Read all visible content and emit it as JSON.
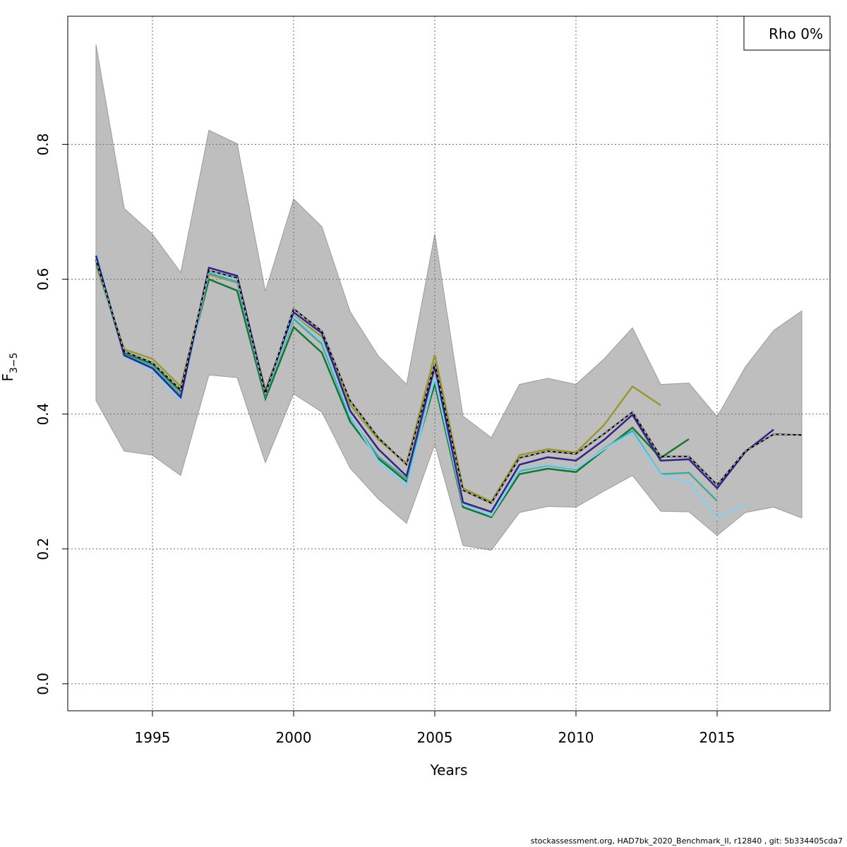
{
  "chart_data": {
    "type": "line",
    "xlabel": "Years",
    "ylabel": "F",
    "ylabel_subscript": "3−5",
    "xlim": [
      1992,
      2019
    ],
    "ylim": [
      -0.04,
      0.99
    ],
    "x_ticks": [
      1995,
      2000,
      2005,
      2010,
      2015
    ],
    "y_ticks": [
      0.0,
      0.2,
      0.4,
      0.6,
      0.8
    ],
    "grid": true,
    "legend": {
      "text": "Rho 0%",
      "position": "top-right"
    },
    "confidence_band": {
      "color": "#bebebe",
      "x": [
        1993,
        1994,
        1995,
        1996,
        1997,
        1998,
        1999,
        2000,
        2001,
        2002,
        2003,
        2004,
        2005,
        2006,
        2007,
        2008,
        2009,
        2010,
        2011,
        2012,
        2013,
        2014,
        2015,
        2016,
        2017,
        2018
      ],
      "upper": [
        0.948,
        0.705,
        0.667,
        0.61,
        0.821,
        0.801,
        0.582,
        0.719,
        0.678,
        0.552,
        0.486,
        0.444,
        0.667,
        0.397,
        0.365,
        0.444,
        0.453,
        0.444,
        0.482,
        0.528,
        0.444,
        0.446,
        0.396,
        0.47,
        0.524,
        0.553
      ],
      "lower": [
        0.42,
        0.345,
        0.339,
        0.309,
        0.458,
        0.454,
        0.328,
        0.43,
        0.403,
        0.32,
        0.274,
        0.238,
        0.355,
        0.205,
        0.198,
        0.254,
        0.263,
        0.262,
        0.286,
        0.309,
        0.256,
        0.255,
        0.22,
        0.254,
        0.262,
        0.246
      ]
    },
    "series": [
      {
        "color": "#000000",
        "dashed": true,
        "x": [
          1993,
          1994,
          1995,
          1996,
          1997,
          1998,
          1999,
          2000,
          2001,
          2002,
          2003,
          2004,
          2005,
          2006,
          2007,
          2008,
          2009,
          2010,
          2011,
          2012,
          2013,
          2014,
          2015,
          2016,
          2017,
          2018
        ],
        "y": [
          0.628,
          0.493,
          0.476,
          0.436,
          0.613,
          0.602,
          0.43,
          0.556,
          0.523,
          0.42,
          0.365,
          0.325,
          0.475,
          0.287,
          0.268,
          0.335,
          0.345,
          0.341,
          0.371,
          0.403,
          0.337,
          0.337,
          0.295,
          0.345,
          0.37,
          0.369
        ]
      },
      {
        "color": "#999933",
        "x": [
          1993,
          1994,
          1995,
          1996,
          1997,
          1998,
          1999,
          2000,
          2001,
          2002,
          2003,
          2004,
          2005,
          2006,
          2007,
          2008,
          2009,
          2010,
          2011,
          2012,
          2013
        ],
        "y": [
          0.621,
          0.496,
          0.482,
          0.441,
          0.607,
          0.595,
          0.436,
          0.546,
          0.515,
          0.414,
          0.362,
          0.327,
          0.488,
          0.29,
          0.27,
          0.339,
          0.348,
          0.343,
          0.384,
          0.441,
          0.413
        ]
      },
      {
        "color": "#117733",
        "x": [
          1993,
          1994,
          1995,
          1996,
          1997,
          1998,
          1999,
          2000,
          2001,
          2002,
          2003,
          2004,
          2005,
          2006,
          2007,
          2008,
          2009,
          2010,
          2011,
          2012,
          2013,
          2014
        ],
        "y": [
          0.63,
          0.49,
          0.474,
          0.434,
          0.6,
          0.583,
          0.423,
          0.529,
          0.491,
          0.389,
          0.334,
          0.3,
          0.445,
          0.262,
          0.247,
          0.311,
          0.319,
          0.314,
          0.347,
          0.38,
          0.335,
          0.363
        ]
      },
      {
        "color": "#44AA99",
        "x": [
          1993,
          1994,
          1995,
          1996,
          1997,
          1998,
          1999,
          2000,
          2001,
          2002,
          2003,
          2004,
          2005,
          2006,
          2007,
          2008,
          2009,
          2010,
          2011,
          2012,
          2013,
          2014,
          2015
        ],
        "y": [
          0.627,
          0.488,
          0.472,
          0.429,
          0.609,
          0.596,
          0.428,
          0.541,
          0.504,
          0.395,
          0.337,
          0.304,
          0.452,
          0.267,
          0.249,
          0.316,
          0.324,
          0.318,
          0.349,
          0.375,
          0.311,
          0.313,
          0.271
        ]
      },
      {
        "color": "#88CCEE",
        "x": [
          1993,
          1994,
          1995,
          1996,
          1997,
          1998,
          1999,
          2000,
          2001,
          2002,
          2003,
          2004,
          2005,
          2006,
          2007,
          2008,
          2009,
          2010,
          2011,
          2012,
          2013,
          2014,
          2015,
          2016
        ],
        "y": [
          0.64,
          0.485,
          0.465,
          0.42,
          0.612,
          0.599,
          0.43,
          0.545,
          0.51,
          0.398,
          0.33,
          0.292,
          0.455,
          0.266,
          0.25,
          0.318,
          0.325,
          0.319,
          0.348,
          0.372,
          0.31,
          0.299,
          0.246,
          0.266
        ]
      },
      {
        "color": "#332288",
        "x": [
          1993,
          1994,
          1995,
          1996,
          1997,
          1998,
          1999,
          2000,
          2001,
          2002,
          2003,
          2004,
          2005,
          2006,
          2007,
          2008,
          2009,
          2010,
          2011,
          2012,
          2013,
          2014,
          2015,
          2016,
          2017
        ],
        "y": [
          0.635,
          0.487,
          0.468,
          0.425,
          0.617,
          0.605,
          0.432,
          0.551,
          0.52,
          0.405,
          0.348,
          0.308,
          0.47,
          0.269,
          0.255,
          0.325,
          0.336,
          0.331,
          0.362,
          0.399,
          0.331,
          0.333,
          0.29,
          0.344,
          0.377
        ]
      }
    ]
  },
  "footer_text": "stockassessment.org, HAD7bk_2020_Benchmark_II, r12840 , git: 5b334405cda7"
}
